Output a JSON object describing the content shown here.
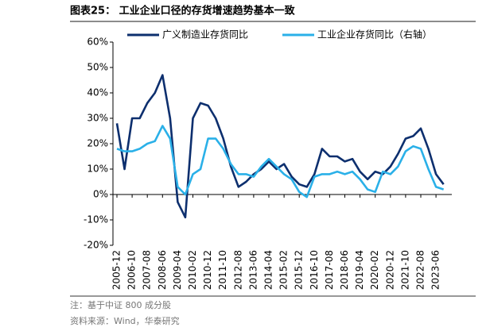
{
  "chart_data": {
    "type": "line",
    "title": "图表25：  工业企业口径的存货增速趋势基本一致",
    "categories": [
      "2005-12",
      null,
      "2006-10",
      null,
      "2007-08",
      null,
      "2008-06",
      null,
      "2009-04",
      null,
      "2010-02",
      null,
      "2010-12",
      null,
      "2011-10",
      null,
      "2012-08",
      null,
      "2013-06",
      null,
      "2014-04",
      null,
      "2015-02",
      null,
      "2015-12",
      null,
      "2016-10",
      null,
      "2017-08",
      null,
      "2018-06",
      null,
      "2019-04",
      null,
      "2020-02",
      null,
      "2020-12",
      null,
      "2021-10",
      null,
      "2022-08",
      null,
      "2023-06",
      null
    ],
    "series": [
      {
        "name": "广义制造业存货同比",
        "color": "#0d2f6e",
        "values": [
          28,
          10,
          30,
          30,
          36,
          40,
          47,
          30,
          -3,
          -9,
          30,
          36,
          35,
          30,
          22,
          11,
          3,
          5,
          8,
          10,
          13,
          10,
          12,
          7,
          4,
          3,
          8,
          18,
          15,
          15,
          13,
          14,
          9,
          6,
          9,
          8,
          11,
          16,
          22,
          23,
          26,
          18,
          8,
          4
        ]
      },
      {
        "name": "工业企业存货同比（右轴）",
        "color": "#2ab0e8",
        "values": [
          18,
          17,
          17,
          18,
          20,
          21,
          27,
          22,
          3,
          0,
          8,
          10,
          22,
          22,
          18,
          12,
          8,
          8,
          7,
          11,
          14,
          11,
          8,
          6,
          1,
          -1,
          7,
          8,
          8,
          9,
          8,
          9,
          6,
          2,
          1,
          9,
          8,
          11,
          17,
          19,
          18,
          10,
          3,
          2
        ]
      }
    ],
    "ylim": [
      -20,
      60
    ],
    "yticks": [
      {
        "value": -20,
        "label": "-20%"
      },
      {
        "value": -10,
        "label": "-10%"
      },
      {
        "value": 0,
        "label": "0%"
      },
      {
        "value": 10,
        "label": "10%"
      },
      {
        "value": 20,
        "label": "20%"
      },
      {
        "value": 30,
        "label": "30%"
      },
      {
        "value": 40,
        "label": "40%"
      },
      {
        "value": 50,
        "label": "50%"
      },
      {
        "value": 60,
        "label": "60%"
      }
    ],
    "notes": [
      "注：基于中证 800 成分股",
      "资料来源：Wind，华泰研究"
    ]
  }
}
